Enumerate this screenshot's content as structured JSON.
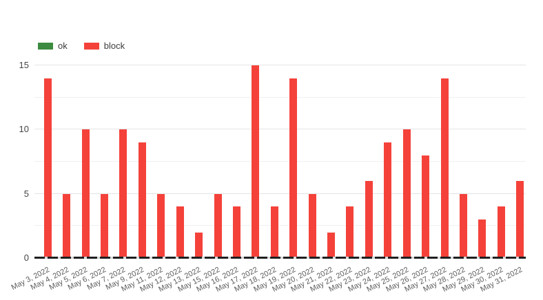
{
  "chart_data": {
    "type": "bar",
    "title": "",
    "xlabel": "",
    "ylabel": "",
    "categories": [
      "May 3, 2022",
      "May 4, 2022",
      "May 5, 2022",
      "May 6, 2022",
      "May 7, 2022",
      "May 9, 2022",
      "May 11, 2022",
      "May 12, 2022",
      "May 13, 2022",
      "May 15, 2022",
      "May 16, 2022",
      "May 17, 2022",
      "May 18, 2022",
      "May 19, 2022",
      "May 20, 2022",
      "May 21, 2022",
      "May 22, 2022",
      "May 23, 2022",
      "May 24, 2022",
      "May 25, 2022",
      "May 26, 2022",
      "May 27, 2022",
      "May 28, 2022",
      "May 29, 2022",
      "May 30, 2022",
      "May 31, 2022"
    ],
    "series": [
      {
        "name": "ok",
        "color": "#3c8b40",
        "values": [
          0,
          0,
          0,
          0,
          0,
          0,
          0,
          0,
          0,
          0,
          0,
          0,
          0,
          0,
          0,
          0,
          0,
          0,
          0,
          0,
          0,
          0,
          0,
          0,
          0,
          0
        ]
      },
      {
        "name": "block",
        "color": "#f4423a",
        "values": [
          14,
          5,
          10,
          5,
          10,
          9,
          5,
          4,
          2,
          5,
          4,
          15,
          4,
          14,
          5,
          2,
          4,
          6,
          9,
          10,
          8,
          14,
          5,
          3,
          4,
          6
        ]
      }
    ],
    "ylim": [
      0,
      15
    ],
    "yticks": [
      0,
      5,
      10,
      15
    ],
    "minor_tick_step": 2.5,
    "grid": "horizontal",
    "legend_position": "top-left",
    "x_label_rotation_deg": -27
  }
}
